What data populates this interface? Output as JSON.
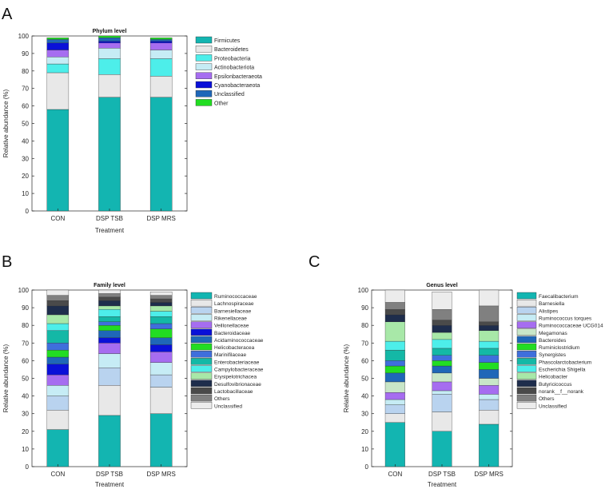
{
  "panels": [
    {
      "letter": "A",
      "chart_data": {
        "type": "bar",
        "stacked": true,
        "title": "Phylum level",
        "xlabel": "Treatment",
        "ylabel": "Relative abundance (%)",
        "ylim": [
          0,
          100
        ],
        "yticks": [
          0,
          10,
          20,
          30,
          40,
          50,
          60,
          70,
          80,
          90,
          100
        ],
        "categories": [
          "CON",
          "DSP TSB",
          "DSP MRS"
        ],
        "legend_position": "right",
        "series": [
          {
            "name": "Firmicutes",
            "color": "#13b5b1",
            "values": [
              58,
              65,
              65
            ]
          },
          {
            "name": "Bacteroidetes",
            "color": "#e8e8e8",
            "values": [
              21,
              13,
              12
            ]
          },
          {
            "name": "Proteobacteria",
            "color": "#4deeea",
            "values": [
              5,
              9,
              10
            ]
          },
          {
            "name": "Actinobacteriota",
            "color": "#c6ecf5",
            "values": [
              4,
              6,
              5
            ]
          },
          {
            "name": "Epsilonbacteraeota",
            "color": "#a66df0",
            "values": [
              4,
              3,
              4
            ]
          },
          {
            "name": "Cyanobacteraeota",
            "color": "#0a10d8",
            "values": [
              4,
              1,
              1
            ]
          },
          {
            "name": "Unclassified",
            "color": "#1f67b8",
            "values": [
              2,
              2,
              1
            ]
          },
          {
            "name": "Other",
            "color": "#22dd22",
            "values": [
              1,
              1,
              1
            ]
          }
        ]
      }
    },
    {
      "letter": "B",
      "chart_data": {
        "type": "bar",
        "stacked": true,
        "title": "Family level",
        "xlabel": "Treatment",
        "ylabel": "Relative abundance (%)",
        "ylim": [
          0,
          100
        ],
        "yticks": [
          0,
          10,
          20,
          30,
          40,
          50,
          60,
          70,
          80,
          90,
          100
        ],
        "categories": [
          "CON",
          "DSP TSB",
          "DSP MRS"
        ],
        "legend_position": "right",
        "series": [
          {
            "name": "Ruminococcaceae",
            "color": "#13b5b1",
            "values": [
              21,
              29,
              30
            ]
          },
          {
            "name": "Lachnospiraceae",
            "color": "#e8e8e8",
            "values": [
              11,
              17,
              15
            ]
          },
          {
            "name": "Barnesiellaceae",
            "color": "#b9d3ef",
            "values": [
              8,
              10,
              7
            ]
          },
          {
            "name": "Rikenellaceae",
            "color": "#c6ecf5",
            "values": [
              6,
              8,
              7
            ]
          },
          {
            "name": "Veillonellaceae",
            "color": "#a66df0",
            "values": [
              6,
              6,
              6
            ]
          },
          {
            "name": "Bacteroidaceae",
            "color": "#0a10d8",
            "values": [
              6,
              3,
              4
            ]
          },
          {
            "name": "Acidaminococcaceae",
            "color": "#1f67b8",
            "values": [
              4,
              4,
              4
            ]
          },
          {
            "name": "Helicobacteracea",
            "color": "#22dd22",
            "values": [
              4,
              3,
              5
            ]
          },
          {
            "name": "Marinifilaceae",
            "color": "#3f6fdc",
            "values": [
              4,
              2,
              3
            ]
          },
          {
            "name": "Enterobacteriaceae",
            "color": "#14b8a6",
            "values": [
              7,
              3,
              4
            ]
          },
          {
            "name": "Campylobacteraceae",
            "color": "#4deeea",
            "values": [
              4,
              4,
              3
            ]
          },
          {
            "name": "Erysipelotrichacea",
            "color": "#a8e8a8",
            "values": [
              5,
              2,
              3
            ]
          },
          {
            "name": "Desulfovibrionaceae",
            "color": "#1e2d4c",
            "values": [
              5,
              3,
              2
            ]
          },
          {
            "name": "Lactobacillaceae",
            "color": "#4a4a4a",
            "values": [
              3,
              2,
              2
            ]
          },
          {
            "name": "Others",
            "color": "#808080",
            "values": [
              3,
              2,
              2
            ]
          },
          {
            "name": "Unclassified",
            "color": "#ececec",
            "values": [
              3,
              2,
              2
            ]
          }
        ]
      }
    },
    {
      "letter": "C",
      "chart_data": {
        "type": "bar",
        "stacked": true,
        "title": "Genus level",
        "xlabel": "Treatment",
        "ylabel": "Relative abundance (%)",
        "ylim": [
          0,
          100
        ],
        "yticks": [
          0,
          10,
          20,
          30,
          40,
          50,
          60,
          70,
          80,
          90,
          100
        ],
        "categories": [
          "CON",
          "DSP TSB",
          "DSP MRS"
        ],
        "legend_position": "right",
        "series": [
          {
            "name": "Faecalibacterium",
            "color": "#13b5b1",
            "values": [
              25,
              20,
              24
            ]
          },
          {
            "name": "Barnesiella",
            "color": "#e8e8e8",
            "values": [
              5,
              11,
              8
            ]
          },
          {
            "name": "Alistipes",
            "color": "#b9d3ef",
            "values": [
              5,
              10,
              6
            ]
          },
          {
            "name": "Ruminococcus torques",
            "color": "#c6ecf5",
            "values": [
              3,
              2,
              3
            ]
          },
          {
            "name": "Ruminococcaceae UCG014",
            "color": "#a66df0",
            "values": [
              4,
              5,
              5
            ]
          },
          {
            "name": "Megamonas",
            "color": "#c8e6c8",
            "values": [
              6,
              5,
              4
            ]
          },
          {
            "name": "Bacteroides",
            "color": "#1f67b8",
            "values": [
              5,
              4,
              5
            ]
          },
          {
            "name": "Ruminiclostridium",
            "color": "#22dd22",
            "values": [
              4,
              3,
              4
            ]
          },
          {
            "name": "Synergistes",
            "color": "#3f6fdc",
            "values": [
              3,
              3,
              4
            ]
          },
          {
            "name": "Phascolarctobacterium",
            "color": "#14b8a6",
            "values": [
              6,
              4,
              4
            ]
          },
          {
            "name": "Escherichia Shigella",
            "color": "#4deeea",
            "values": [
              5,
              5,
              4
            ]
          },
          {
            "name": "Helicobacter",
            "color": "#a8e8a8",
            "values": [
              11,
              4,
              6
            ]
          },
          {
            "name": "Butyricicoccus",
            "color": "#1e2d4c",
            "values": [
              4,
              4,
              3
            ]
          },
          {
            "name": "norank__f__norank",
            "color": "#4a4a4a",
            "values": [
              3,
              3,
              2
            ]
          },
          {
            "name": "Others",
            "color": "#808080",
            "values": [
              4,
              6,
              9
            ]
          },
          {
            "name": "Unclassified",
            "color": "#ececec",
            "values": [
              7,
              10,
              9
            ]
          }
        ]
      }
    }
  ]
}
